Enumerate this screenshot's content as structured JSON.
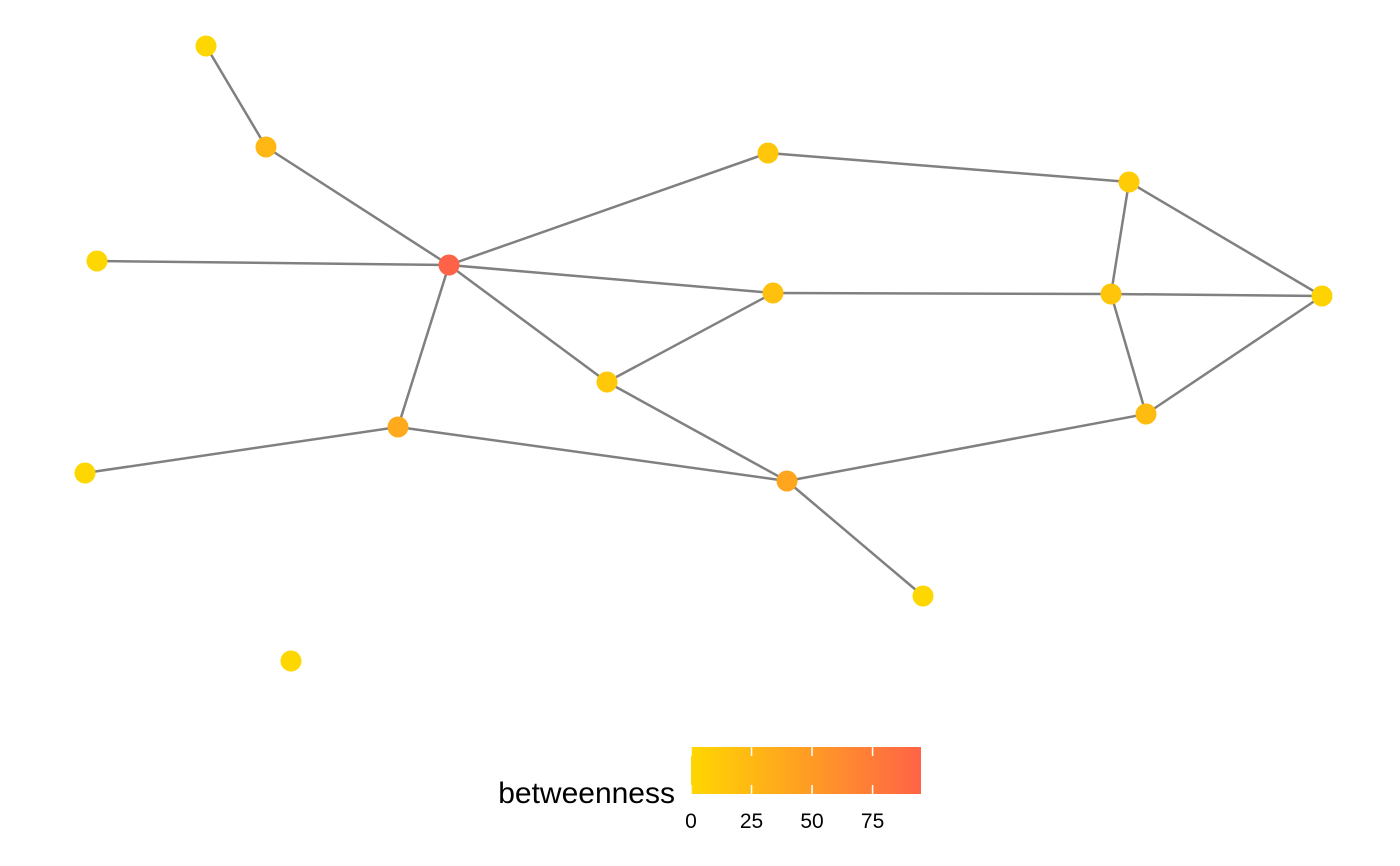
{
  "graph": {
    "edge_color": "#808080",
    "nodes": [
      {
        "id": "n1",
        "betweenness": 0
      },
      {
        "id": "n2",
        "betweenness": 26
      },
      {
        "id": "n3",
        "betweenness": 95
      },
      {
        "id": "n4",
        "betweenness": 0
      },
      {
        "id": "n5",
        "betweenness": 0
      },
      {
        "id": "n6",
        "betweenness": 38
      },
      {
        "id": "n7",
        "betweenness": 14
      },
      {
        "id": "n8",
        "betweenness": 18
      },
      {
        "id": "n9",
        "betweenness": 12
      },
      {
        "id": "n10",
        "betweenness": 40
      },
      {
        "id": "n11",
        "betweenness": 0
      },
      {
        "id": "n12",
        "betweenness": 0
      },
      {
        "id": "n13",
        "betweenness": 10
      },
      {
        "id": "n14",
        "betweenness": 15
      },
      {
        "id": "n15",
        "betweenness": 3
      },
      {
        "id": "n16",
        "betweenness": 22
      }
    ],
    "edges": [
      [
        "n1",
        "n2"
      ],
      [
        "n2",
        "n3"
      ],
      [
        "n4",
        "n3"
      ],
      [
        "n3",
        "n7"
      ],
      [
        "n3",
        "n8"
      ],
      [
        "n3",
        "n9"
      ],
      [
        "n3",
        "n6"
      ],
      [
        "n5",
        "n6"
      ],
      [
        "n6",
        "n10"
      ],
      [
        "n9",
        "n8"
      ],
      [
        "n9",
        "n10"
      ],
      [
        "n10",
        "n11"
      ],
      [
        "n10",
        "n16"
      ],
      [
        "n7",
        "n13"
      ],
      [
        "n8",
        "n14"
      ],
      [
        "n13",
        "n14"
      ],
      [
        "n13",
        "n15"
      ],
      [
        "n14",
        "n15"
      ],
      [
        "n14",
        "n16"
      ],
      [
        "n15",
        "n16"
      ]
    ]
  },
  "legend": {
    "title": "betweenness",
    "color_low": "#FFD700",
    "color_high": "#FF6347",
    "min": 0,
    "max": 95,
    "ticks": [
      {
        "value": 0,
        "label": "0"
      },
      {
        "value": 25,
        "label": "25"
      },
      {
        "value": 50,
        "label": "50"
      },
      {
        "value": 75,
        "label": "75"
      }
    ]
  }
}
